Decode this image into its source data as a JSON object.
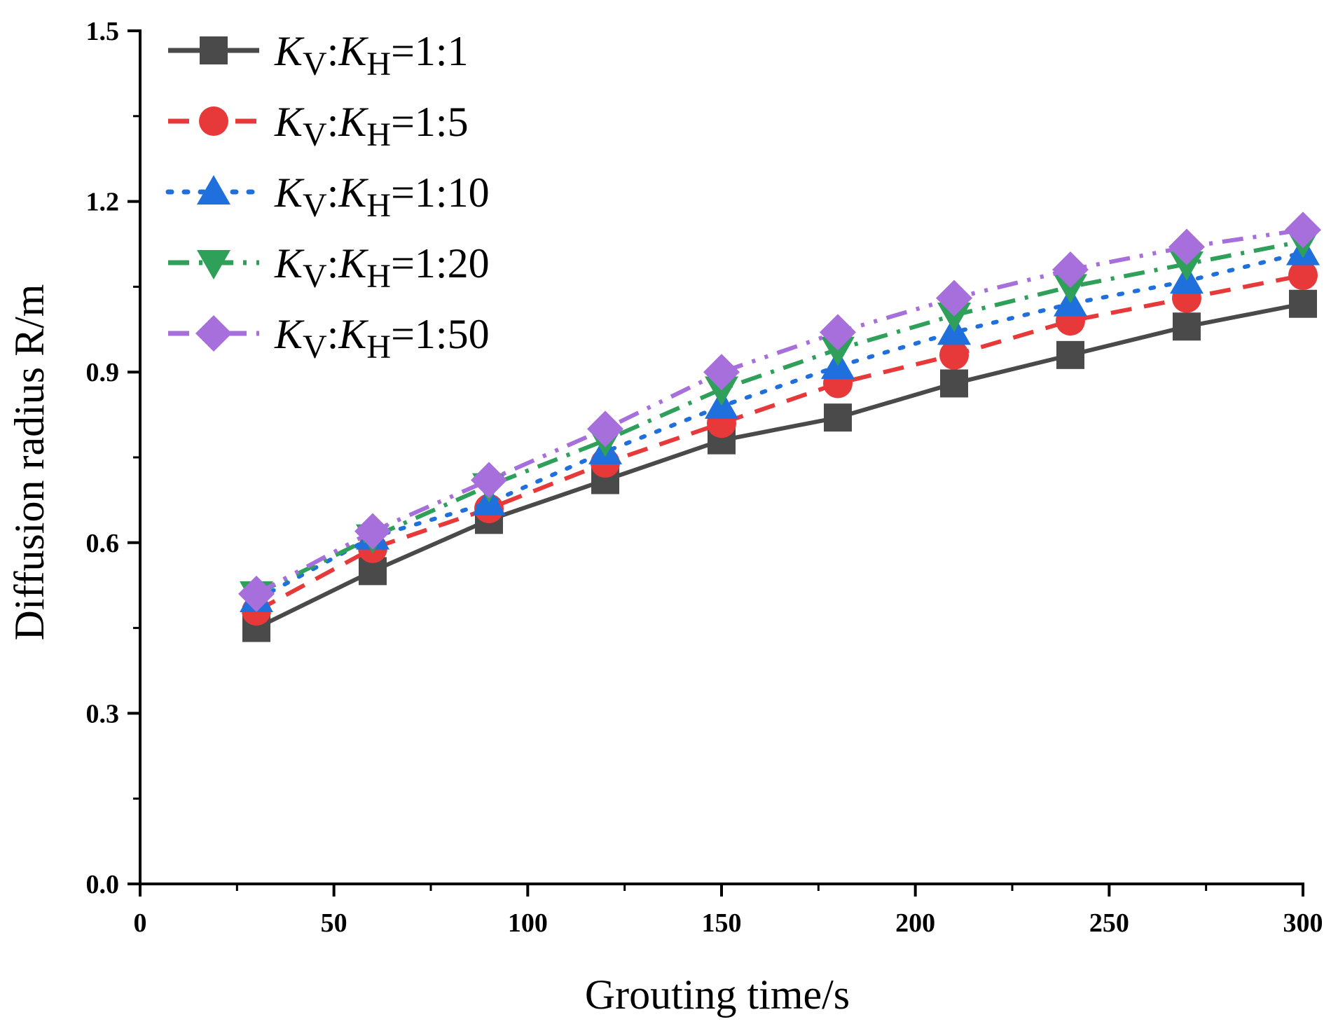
{
  "chart_data": {
    "type": "line",
    "title": "",
    "xlabel": "Grouting time/s",
    "ylabel": "Diffusion radius R/m",
    "xlim": [
      0,
      300
    ],
    "ylim": [
      0.0,
      1.5
    ],
    "x_ticks": [
      0,
      50,
      100,
      150,
      200,
      250,
      300
    ],
    "x_tick_labels": [
      "0",
      "50",
      "100",
      "150",
      "200",
      "250",
      "300"
    ],
    "y_ticks": [
      0.0,
      0.3,
      0.6,
      0.9,
      1.2,
      1.5
    ],
    "y_tick_labels": [
      "0.0",
      "0.3",
      "0.6",
      "0.9",
      "1.2",
      "1.5"
    ],
    "grid": false,
    "legend_position": "top-left",
    "x": [
      30,
      60,
      90,
      120,
      150,
      180,
      210,
      240,
      270,
      300
    ],
    "series": [
      {
        "name": "KV:KH=1:1",
        "k_v": "K",
        "sub_v": "V",
        "sep": ":",
        "k_h": "K",
        "sub_h": "H",
        "ratio": "=1:1",
        "color": "#4a4a4a",
        "marker": "square",
        "line": "solid",
        "values": [
          0.45,
          0.55,
          0.64,
          0.71,
          0.78,
          0.82,
          0.88,
          0.93,
          0.98,
          1.02
        ]
      },
      {
        "name": "KV:KH=1:5",
        "k_v": "K",
        "sub_v": "V",
        "sep": ":",
        "k_h": "K",
        "sub_h": "H",
        "ratio": "=1:5",
        "color": "#e8393a",
        "marker": "circle",
        "line": "dash",
        "values": [
          0.48,
          0.59,
          0.66,
          0.74,
          0.81,
          0.88,
          0.93,
          0.99,
          1.03,
          1.07
        ]
      },
      {
        "name": "KV:KH=1:10",
        "k_v": "K",
        "sub_v": "V",
        "sep": ":",
        "k_h": "K",
        "sub_h": "H",
        "ratio": "=1:10",
        "color": "#1f6fdc",
        "marker": "triangle-up",
        "line": "dot",
        "values": [
          0.5,
          0.61,
          0.67,
          0.76,
          0.84,
          0.91,
          0.97,
          1.02,
          1.06,
          1.11
        ]
      },
      {
        "name": "KV:KH=1:20",
        "k_v": "K",
        "sub_v": "V",
        "sep": ":",
        "k_h": "K",
        "sub_h": "H",
        "ratio": "=1:20",
        "color": "#2ea05a",
        "marker": "triangle-down",
        "line": "dashdot",
        "values": [
          0.51,
          0.61,
          0.7,
          0.78,
          0.87,
          0.94,
          1.0,
          1.05,
          1.09,
          1.13
        ]
      },
      {
        "name": "KV:KH=1:50",
        "k_v": "K",
        "sub_v": "V",
        "sep": ":",
        "k_h": "K",
        "sub_h": "H",
        "ratio": "=1:50",
        "color": "#a66fdc",
        "marker": "diamond",
        "line": "dashdotdot",
        "values": [
          0.51,
          0.62,
          0.71,
          0.8,
          0.9,
          0.97,
          1.03,
          1.08,
          1.12,
          1.15
        ]
      }
    ]
  }
}
